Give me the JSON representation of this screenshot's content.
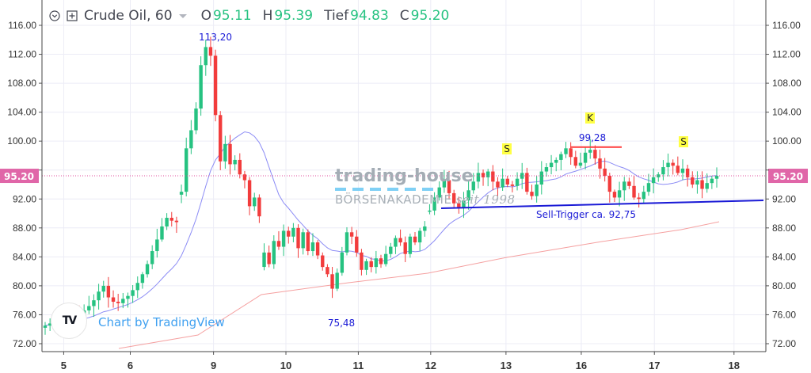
{
  "legend": {
    "symbol": "Crude Oil, 60",
    "open_label": "O",
    "open": "95.11",
    "high_label": "H",
    "high": "95.39",
    "low_label": "Tief",
    "low": "94.83",
    "close_label": "C",
    "close": "95.20",
    "icons": [
      "collapse-circle-icon",
      "add-compare-icon",
      "chevron-down-icon"
    ]
  },
  "watermark": {
    "line1": "trading-house",
    "line2": "BÖRSENAKADEMIE",
    "line3": " seit 1998"
  },
  "branding": {
    "logo_text": "TV",
    "credit": "Chart by TradingView"
  },
  "colors": {
    "up": "#26c281",
    "down": "#f23c3c",
    "ma_fast": "#8c8cf5",
    "ma_slow": "#f5a0a0",
    "price_line": "#e24d9c",
    "price_label_bg": "#e066a8",
    "trigger_line": "#1a1ad6",
    "neckline_top": "#ff3b3b",
    "annotation_text": "#1a1ad6",
    "shs_label_bg": "#ffff44",
    "grid": "#ececf6",
    "axis_text": "#333333"
  },
  "chart_data": {
    "type": "candlestick",
    "title": "Crude Oil, 60",
    "timeframe": "60",
    "xlabel": "",
    "ylabel": "",
    "ylim": [
      71,
      118
    ],
    "y_ticks": [
      72,
      76,
      80,
      84,
      88,
      92,
      96,
      100,
      104,
      108,
      112,
      116
    ],
    "y_tick_labels": [
      "72.00",
      "76.00",
      "80.00",
      "84.00",
      "88.00",
      "92.00",
      "96.00",
      "100.00",
      "104.00",
      "108.00",
      "112.00",
      "116.00"
    ],
    "x_tick_labels": [
      "5",
      "6",
      "9",
      "10",
      "11",
      "12",
      "13",
      "16",
      "17",
      "18"
    ],
    "x_tick_pos": [
      0.03,
      0.122,
      0.237,
      0.337,
      0.437,
      0.537,
      0.641,
      0.745,
      0.846,
      0.956
    ],
    "grid": true,
    "last_price": 95.2,
    "last_price_label": "95.20",
    "closes": [
      74.5,
      74.8,
      75.2,
      75.6,
      75.0,
      75.4,
      76.0,
      75.8,
      76.6,
      77.2,
      78.0,
      79.2,
      80.0,
      78.4,
      77.8,
      77.6,
      78.2,
      78.6,
      79.4,
      80.4,
      81.6,
      83.0,
      84.8,
      86.4,
      88.2,
      89.4,
      89.0,
      88.8,
      93.0,
      99.0,
      101.5,
      104.5,
      110.5,
      113.0,
      111.8,
      103.6,
      97.2,
      99.6,
      96.8,
      97.4,
      95.4,
      94.6,
      91.0,
      92.2,
      89.6,
      84.6,
      83.0,
      86.2,
      85.4,
      87.6,
      86.8,
      88.0,
      85.2,
      87.4,
      84.8,
      86.0,
      84.2,
      82.6,
      81.6,
      79.6,
      81.8,
      84.6,
      87.4,
      86.8,
      84.6,
      82.2,
      83.4,
      82.6,
      83.8,
      83.0,
      84.4,
      85.4,
      86.6,
      86.0,
      84.4,
      86.8,
      86.0,
      87.6,
      88.2,
      90.4,
      92.2,
      93.6,
      94.6,
      92.8,
      91.4,
      90.8,
      91.8,
      93.2,
      94.4,
      95.6,
      95.0,
      95.8,
      94.4,
      93.6,
      94.8,
      94.0,
      93.8,
      94.8,
      95.6,
      93.0,
      92.4,
      94.0,
      95.8,
      96.4,
      97.0,
      97.4,
      98.2,
      99.0,
      97.8,
      96.6,
      97.0,
      98.4,
      98.8,
      97.6,
      96.2,
      95.2,
      93.0,
      92.2,
      93.2,
      94.4,
      93.8,
      92.2,
      92.0,
      93.0,
      94.2,
      95.0,
      95.4,
      96.4,
      97.0,
      96.6,
      95.6,
      96.2,
      95.0,
      94.0,
      94.6,
      93.4,
      94.2,
      94.8,
      95.2
    ],
    "gap_after_index": [
      27,
      44,
      78
    ],
    "annotations": [
      {
        "text": "113,20",
        "price": 113.2,
        "role": "high"
      },
      {
        "text": "75,48",
        "price": 75.48,
        "role": "low"
      },
      {
        "text": "99,28",
        "price": 99.28,
        "role": "head-top"
      },
      {
        "text": "S",
        "role": "left-shoulder"
      },
      {
        "text": "K",
        "role": "head"
      },
      {
        "text": "S",
        "role": "right-shoulder"
      },
      {
        "text": "Sell-Trigger ca. 92,75",
        "price": 92.75,
        "role": "neckline"
      }
    ],
    "series": [
      {
        "name": "Moving Average (fast)",
        "color": "#8c8cf5"
      },
      {
        "name": "Moving Average (slow)",
        "color": "#f5a0a0"
      }
    ]
  }
}
